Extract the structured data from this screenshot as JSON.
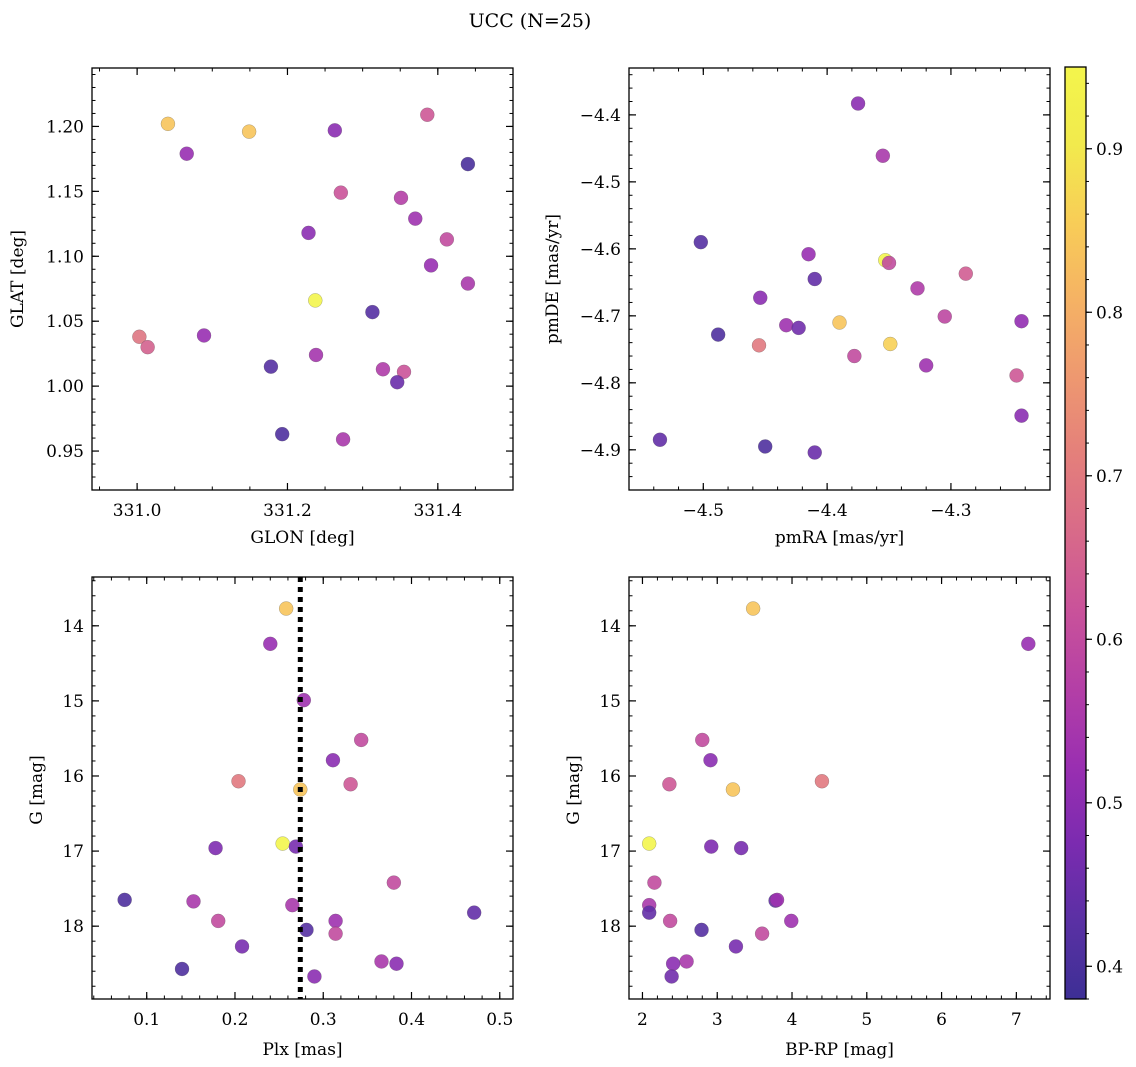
{
  "figure_title": "UCC (N=25)",
  "chart_data": [
    {
      "type": "scatter",
      "panel": "top-left",
      "xlabel": "GLON [deg]",
      "ylabel": "GLAT [deg]",
      "xlim": [
        330.94,
        331.5
      ],
      "ylim": [
        0.92,
        1.245
      ],
      "yinvert": false,
      "xticks": [
        331.0,
        331.2,
        331.4
      ],
      "xticklabels": [
        "331.0",
        "331.2",
        "331.4"
      ],
      "xminor": 0.05,
      "yticks": [
        0.95,
        1.0,
        1.05,
        1.1,
        1.15,
        1.2
      ],
      "yticklabels": [
        "0.95",
        "1.00",
        "1.05",
        "1.10",
        "1.15",
        "1.20"
      ],
      "yminor": 0.01,
      "points": [
        {
          "x": 331.041,
          "y": 1.202,
          "c": 0.84
        },
        {
          "x": 331.149,
          "y": 1.196,
          "c": 0.84
        },
        {
          "x": 331.066,
          "y": 1.179,
          "c": 0.52
        },
        {
          "x": 331.263,
          "y": 1.197,
          "c": 0.5
        },
        {
          "x": 331.386,
          "y": 1.209,
          "c": 0.63
        },
        {
          "x": 331.44,
          "y": 1.171,
          "c": 0.4
        },
        {
          "x": 331.271,
          "y": 1.149,
          "c": 0.62
        },
        {
          "x": 331.351,
          "y": 1.145,
          "c": 0.57
        },
        {
          "x": 331.37,
          "y": 1.129,
          "c": 0.53
        },
        {
          "x": 331.228,
          "y": 1.118,
          "c": 0.5
        },
        {
          "x": 331.412,
          "y": 1.113,
          "c": 0.6
        },
        {
          "x": 331.391,
          "y": 1.093,
          "c": 0.52
        },
        {
          "x": 331.44,
          "y": 1.079,
          "c": 0.55
        },
        {
          "x": 331.237,
          "y": 1.066,
          "c": 0.95
        },
        {
          "x": 331.313,
          "y": 1.057,
          "c": 0.42
        },
        {
          "x": 331.003,
          "y": 1.038,
          "c": 0.69
        },
        {
          "x": 331.014,
          "y": 1.03,
          "c": 0.65
        },
        {
          "x": 331.089,
          "y": 1.039,
          "c": 0.52
        },
        {
          "x": 331.238,
          "y": 1.024,
          "c": 0.54
        },
        {
          "x": 331.178,
          "y": 1.015,
          "c": 0.42
        },
        {
          "x": 331.327,
          "y": 1.013,
          "c": 0.56
        },
        {
          "x": 331.355,
          "y": 1.011,
          "c": 0.62
        },
        {
          "x": 331.346,
          "y": 1.003,
          "c": 0.45
        },
        {
          "x": 331.193,
          "y": 0.963,
          "c": 0.41
        },
        {
          "x": 331.274,
          "y": 0.959,
          "c": 0.55
        }
      ]
    },
    {
      "type": "scatter",
      "panel": "top-right",
      "xlabel": "pmRA [mas/yr]",
      "ylabel": "pmDE [mas/yr]",
      "xlim": [
        -4.56,
        -4.22
      ],
      "ylim": [
        -4.96,
        -4.33
      ],
      "yinvert": false,
      "xticks": [
        -4.5,
        -4.4,
        -4.3
      ],
      "xticklabels": [
        "−4.5",
        "−4.4",
        "−4.3"
      ],
      "xminor": 0.02,
      "yticks": [
        -4.9,
        -4.8,
        -4.7,
        -4.6,
        -4.5,
        -4.4
      ],
      "yticklabels": [
        "−4.9",
        "−4.8",
        "−4.7",
        "−4.6",
        "−4.5",
        "−4.4"
      ],
      "yminor": 0.02,
      "points": [
        {
          "x": -4.375,
          "y": -4.383,
          "c": 0.5
        },
        {
          "x": -4.355,
          "y": -4.461,
          "c": 0.55
        },
        {
          "x": -4.502,
          "y": -4.59,
          "c": 0.42
        },
        {
          "x": -4.415,
          "y": -4.608,
          "c": 0.52
        },
        {
          "x": -4.353,
          "y": -4.617,
          "c": 0.95
        },
        {
          "x": -4.35,
          "y": -4.621,
          "c": 0.6
        },
        {
          "x": -4.288,
          "y": -4.637,
          "c": 0.64
        },
        {
          "x": -4.41,
          "y": -4.645,
          "c": 0.44
        },
        {
          "x": -4.327,
          "y": -4.659,
          "c": 0.56
        },
        {
          "x": -4.454,
          "y": -4.673,
          "c": 0.5
        },
        {
          "x": -4.305,
          "y": -4.701,
          "c": 0.59
        },
        {
          "x": -4.243,
          "y": -4.708,
          "c": 0.51
        },
        {
          "x": -4.39,
          "y": -4.71,
          "c": 0.84
        },
        {
          "x": -4.433,
          "y": -4.714,
          "c": 0.53
        },
        {
          "x": -4.423,
          "y": -4.718,
          "c": 0.46
        },
        {
          "x": -4.488,
          "y": -4.728,
          "c": 0.41
        },
        {
          "x": -4.349,
          "y": -4.742,
          "c": 0.86
        },
        {
          "x": -4.455,
          "y": -4.744,
          "c": 0.7
        },
        {
          "x": -4.378,
          "y": -4.76,
          "c": 0.6
        },
        {
          "x": -4.32,
          "y": -4.774,
          "c": 0.53
        },
        {
          "x": -4.247,
          "y": -4.789,
          "c": 0.63
        },
        {
          "x": -4.243,
          "y": -4.849,
          "c": 0.5
        },
        {
          "x": -4.535,
          "y": -4.885,
          "c": 0.44
        },
        {
          "x": -4.45,
          "y": -4.895,
          "c": 0.41
        },
        {
          "x": -4.41,
          "y": -4.904,
          "c": 0.45
        }
      ]
    },
    {
      "type": "scatter",
      "panel": "bottom-left",
      "xlabel": "Plx [mas]",
      "ylabel": "G [mag]",
      "xlim": [
        0.038,
        0.515
      ],
      "ylim": [
        13.35,
        18.97
      ],
      "yinvert": true,
      "xticks": [
        0.1,
        0.2,
        0.3,
        0.4,
        0.5
      ],
      "xticklabels": [
        "0.1",
        "0.2",
        "0.3",
        "0.4",
        "0.5"
      ],
      "xminor": 0.02,
      "yticks": [
        14,
        15,
        16,
        17,
        18
      ],
      "yticklabels": [
        "14",
        "15",
        "16",
        "17",
        "18"
      ],
      "yminor": 0.2,
      "vline": {
        "x": 0.274,
        "style": "dotted",
        "color": "#000000"
      },
      "points": [
        {
          "x": 0.258,
          "y": 13.77,
          "c": 0.84
        },
        {
          "x": 0.24,
          "y": 14.24,
          "c": 0.52
        },
        {
          "x": 0.278,
          "y": 14.99,
          "c": 0.53
        },
        {
          "x": 0.343,
          "y": 15.52,
          "c": 0.6
        },
        {
          "x": 0.311,
          "y": 15.79,
          "c": 0.5
        },
        {
          "x": 0.204,
          "y": 16.07,
          "c": 0.7
        },
        {
          "x": 0.331,
          "y": 16.11,
          "c": 0.63
        },
        {
          "x": 0.274,
          "y": 16.18,
          "c": 0.84
        },
        {
          "x": 0.178,
          "y": 16.96,
          "c": 0.48
        },
        {
          "x": 0.254,
          "y": 16.9,
          "c": 0.95
        },
        {
          "x": 0.269,
          "y": 16.94,
          "c": 0.47
        },
        {
          "x": 0.38,
          "y": 17.42,
          "c": 0.6
        },
        {
          "x": 0.075,
          "y": 17.65,
          "c": 0.41
        },
        {
          "x": 0.153,
          "y": 17.67,
          "c": 0.55
        },
        {
          "x": 0.265,
          "y": 17.72,
          "c": 0.55
        },
        {
          "x": 0.471,
          "y": 17.82,
          "c": 0.44
        },
        {
          "x": 0.181,
          "y": 17.93,
          "c": 0.6
        },
        {
          "x": 0.314,
          "y": 17.93,
          "c": 0.53
        },
        {
          "x": 0.281,
          "y": 18.05,
          "c": 0.42
        },
        {
          "x": 0.314,
          "y": 18.1,
          "c": 0.6
        },
        {
          "x": 0.208,
          "y": 18.27,
          "c": 0.47
        },
        {
          "x": 0.366,
          "y": 18.47,
          "c": 0.55
        },
        {
          "x": 0.383,
          "y": 18.5,
          "c": 0.5
        },
        {
          "x": 0.14,
          "y": 18.57,
          "c": 0.41
        },
        {
          "x": 0.29,
          "y": 18.67,
          "c": 0.5
        }
      ]
    },
    {
      "type": "scatter",
      "panel": "bottom-right",
      "xlabel": "BP-RP [mag]",
      "ylabel": "G [mag]",
      "xlim": [
        1.82,
        7.45
      ],
      "ylim": [
        13.35,
        18.97
      ],
      "yinvert": true,
      "xticks": [
        2,
        3,
        4,
        5,
        6,
        7
      ],
      "xticklabels": [
        "2",
        "3",
        "4",
        "5",
        "6",
        "7"
      ],
      "xminor": 0.2,
      "yticks": [
        14,
        15,
        16,
        17,
        18
      ],
      "yticklabels": [
        "14",
        "15",
        "16",
        "17",
        "18"
      ],
      "yminor": 0.2,
      "points": [
        {
          "x": 3.48,
          "y": 13.77,
          "c": 0.84
        },
        {
          "x": 7.16,
          "y": 14.24,
          "c": 0.52
        },
        {
          "x": 2.8,
          "y": 15.52,
          "c": 0.6
        },
        {
          "x": 2.91,
          "y": 15.79,
          "c": 0.5
        },
        {
          "x": 4.4,
          "y": 16.07,
          "c": 0.7
        },
        {
          "x": 2.36,
          "y": 16.11,
          "c": 0.63
        },
        {
          "x": 3.21,
          "y": 16.18,
          "c": 0.84
        },
        {
          "x": 2.09,
          "y": 16.9,
          "c": 0.95
        },
        {
          "x": 2.92,
          "y": 16.94,
          "c": 0.48
        },
        {
          "x": 3.32,
          "y": 16.96,
          "c": 0.47
        },
        {
          "x": 2.16,
          "y": 17.42,
          "c": 0.6
        },
        {
          "x": 3.78,
          "y": 17.66,
          "c": 0.44
        },
        {
          "x": 3.8,
          "y": 17.65,
          "c": 0.53
        },
        {
          "x": 2.09,
          "y": 17.72,
          "c": 0.55
        },
        {
          "x": 2.09,
          "y": 17.82,
          "c": 0.44
        },
        {
          "x": 2.37,
          "y": 17.93,
          "c": 0.6
        },
        {
          "x": 3.99,
          "y": 17.93,
          "c": 0.53
        },
        {
          "x": 2.79,
          "y": 18.05,
          "c": 0.42
        },
        {
          "x": 3.6,
          "y": 18.1,
          "c": 0.6
        },
        {
          "x": 3.25,
          "y": 18.27,
          "c": 0.47
        },
        {
          "x": 2.59,
          "y": 18.47,
          "c": 0.55
        },
        {
          "x": 2.41,
          "y": 18.5,
          "c": 0.5
        },
        {
          "x": 2.39,
          "y": 18.67,
          "c": 0.46
        }
      ]
    }
  ],
  "colorbar": {
    "colormap": "plasma",
    "range": [
      0.38,
      0.95
    ],
    "ticks": [
      0.4,
      0.5,
      0.6,
      0.7,
      0.8,
      0.9
    ],
    "ticklabels": [
      "0.4",
      "0.5",
      "0.6",
      "0.7",
      "0.8",
      "0.9"
    ],
    "colors": [
      "#3d2f95",
      "#5a30a4",
      "#7b2bb0",
      "#9a2fb1",
      "#b43fa6",
      "#c9529a",
      "#d86a89",
      "#e47f7b",
      "#ee9870",
      "#f5b264",
      "#f8cd57",
      "#f2ea4d",
      "#f3f54c"
    ]
  }
}
